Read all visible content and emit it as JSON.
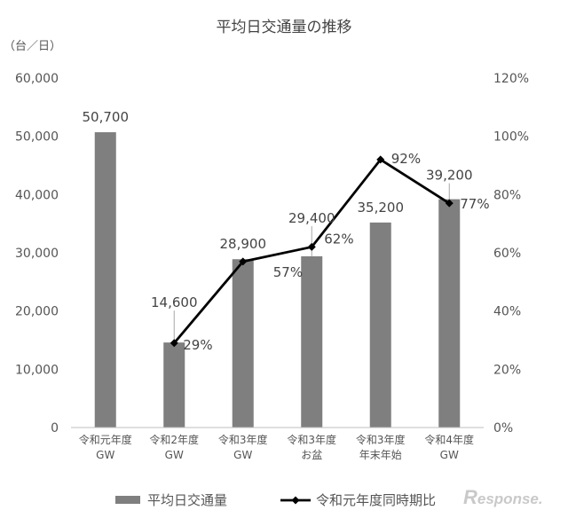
{
  "chart_data": {
    "type": "bar",
    "title": "平均日交通量の推移",
    "y_unit": "（台／日）",
    "categories": [
      [
        "令和元年度",
        "GW"
      ],
      [
        "令和2年度",
        "GW"
      ],
      [
        "令和3年度",
        "GW"
      ],
      [
        "令和3年度",
        "お盆"
      ],
      [
        "令和3年度",
        "年末年始"
      ],
      [
        "令和4年度",
        "GW"
      ]
    ],
    "series": [
      {
        "name": "平均日交通量",
        "kind": "bar",
        "axis": "left",
        "values": [
          50700,
          14600,
          28900,
          29400,
          35200,
          39200
        ],
        "labels": [
          "50,700",
          "14,600",
          "28,900",
          "29,400",
          "35,200",
          "39,200"
        ],
        "color": "#7f7f7f"
      },
      {
        "name": "令和元年度同時期比",
        "kind": "line",
        "axis": "right",
        "values": [
          null,
          29,
          57,
          62,
          92,
          77
        ],
        "labels": [
          "",
          "29%",
          "57%",
          "62%",
          "92%",
          "77%"
        ],
        "color": "#000000"
      }
    ],
    "y_left": {
      "min": 0,
      "max": 60000,
      "ticks": [
        "0",
        "10,000",
        "20,000",
        "30,000",
        "40,000",
        "50,000",
        "60,000"
      ]
    },
    "y_right": {
      "min": 0,
      "max": 120,
      "ticks": [
        "0%",
        "20%",
        "40%",
        "60%",
        "80%",
        "100%",
        "120%"
      ]
    },
    "grid": false,
    "legend_position": "bottom"
  },
  "watermark": "Response."
}
